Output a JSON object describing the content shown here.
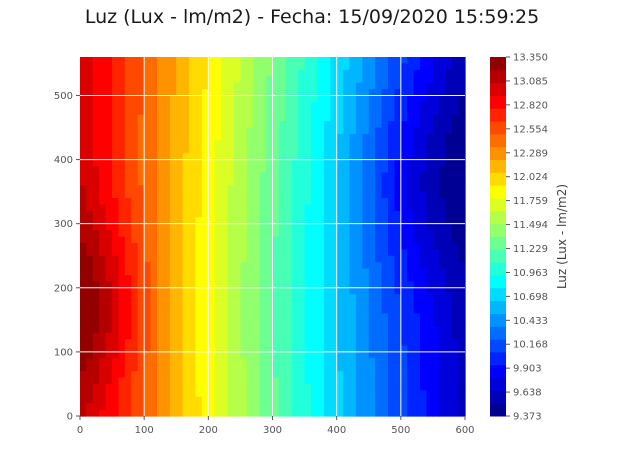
{
  "title": "Luz (Lux - lm/m2) - Fecha: 15/09/2020 15:59:25",
  "chart_data": {
    "type": "heatmap",
    "subtype": "filled-contour",
    "title": "Luz (Lux - lm/m2) - Fecha: 15/09/2020 15:59:25",
    "xlim": [
      0,
      600
    ],
    "ylim": [
      0,
      560
    ],
    "x_ticks": [
      0,
      100,
      200,
      300,
      400,
      500,
      600
    ],
    "y_ticks": [
      0,
      100,
      200,
      300,
      400,
      500
    ],
    "grid": true,
    "grid_color": "#ffffff",
    "colormap": "jet",
    "colorbar": {
      "label": "Luz (Lux - lm/m2)",
      "min": 9.373,
      "max": 13.35,
      "ticks": [
        "13.350",
        "13.085",
        "12.820",
        "12.554",
        "12.289",
        "12.024",
        "11.759",
        "11.494",
        "11.229",
        "10.963",
        "10.698",
        "10.433",
        "10.168",
        "9.903",
        "9.638",
        "9.373"
      ]
    },
    "field_features": {
      "maximum": {
        "x": 20,
        "y": 170,
        "value": 13.35
      },
      "minimum": {
        "x": 540,
        "y": 370,
        "value": 9.373
      }
    }
  }
}
